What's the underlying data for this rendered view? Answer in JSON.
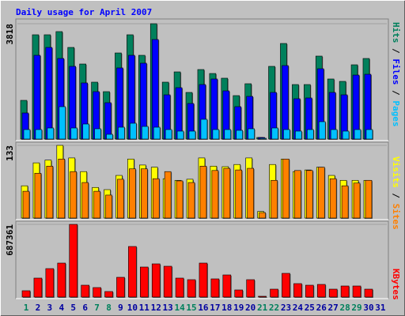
{
  "chart_data": [
    {
      "type": "bar",
      "title": "Daily usage for April 2007",
      "ylim": [
        0,
        3818
      ],
      "yticks": [
        3818
      ],
      "series": [
        {
          "name": "Hits",
          "color": "#00805c",
          "values": [
            1281,
            3452,
            3452,
            3557,
            3033,
            2484,
            1883,
            1569,
            2850,
            3452,
            2772,
            3818,
            1883,
            2223,
            1543,
            2301,
            2170,
            2014,
            1438,
            1831,
            52,
            2406,
            3164,
            1804,
            1804,
            2746,
            1988,
            1909,
            2458,
            2667,
            null
          ]
        },
        {
          "name": "Files",
          "color": "#0000ff",
          "values": [
            863,
            2772,
            3033,
            2667,
            2406,
            1857,
            1569,
            1203,
            2354,
            2772,
            2511,
            3295,
            1464,
            1700,
            1177,
            1804,
            1988,
            1595,
            1072,
            1412,
            52,
            1543,
            2432,
            1334,
            1360,
            2327,
            1543,
            1464,
            2118,
            2144,
            null
          ]
        },
        {
          "name": "Pages",
          "color": "#00c0ff",
          "values": [
            314,
            314,
            366,
            1072,
            366,
            497,
            340,
            157,
            392,
            523,
            418,
            392,
            314,
            262,
            262,
            654,
            314,
            314,
            288,
            340,
            26,
            366,
            314,
            262,
            314,
            575,
            314,
            262,
            314,
            314,
            null
          ]
        }
      ]
    },
    {
      "type": "bar",
      "ylim": [
        0,
        133
      ],
      "yticks": [
        133
      ],
      "series": [
        {
          "name": "Visits",
          "color": "#ffff00",
          "values": [
            59,
            101,
            106,
            133,
            110,
            85,
            56,
            52,
            78,
            108,
            97,
            93,
            72,
            69,
            71,
            110,
            95,
            94,
            98,
            110,
            12,
            98,
            108,
            85,
            88,
            93,
            78,
            69,
            69,
            69,
            null
          ]
        },
        {
          "name": "Sites",
          "color": "#ff8000",
          "values": [
            49,
            82,
            95,
            108,
            85,
            65,
            49,
            42,
            71,
            90,
            90,
            72,
            85,
            68,
            65,
            95,
            87,
            91,
            88,
            91,
            10,
            69,
            108,
            87,
            87,
            93,
            72,
            59,
            64,
            69,
            null
          ]
        }
      ]
    },
    {
      "type": "bar",
      "ylim": [
        0,
        687361
      ],
      "yticks": [
        687361
      ],
      "categories": [
        "1",
        "2",
        "3",
        "4",
        "5",
        "6",
        "7",
        "8",
        "9",
        "10",
        "11",
        "12",
        "13",
        "14",
        "15",
        "16",
        "17",
        "18",
        "19",
        "20",
        "21",
        "22",
        "23",
        "24",
        "25",
        "26",
        "27",
        "28",
        "29",
        "30",
        "31"
      ],
      "category_colors": [
        "#00805c",
        "#0000a0",
        "#0000a0",
        "#0000a0",
        "#0000a0",
        "#0000a0",
        "#00805c",
        "#00805c",
        "#0000a0",
        "#0000a0",
        "#0000a0",
        "#0000a0",
        "#0000a0",
        "#00805c",
        "#00805c",
        "#0000a0",
        "#0000a0",
        "#0000a0",
        "#0000a0",
        "#0000a0",
        "#00805c",
        "#00805c",
        "#0000a0",
        "#0000a0",
        "#0000a0",
        "#0000a0",
        "#0000a0",
        "#00805c",
        "#00805c",
        "#0000a0",
        "#0000a0"
      ],
      "series": [
        {
          "name": "KBytes",
          "color": "#ff0000",
          "values": [
            59771,
            179314,
            268971,
            321275,
            687361,
            112071,
            89657,
            52300,
            186788,
            478164,
            283914,
            313800,
            291386,
            179314,
            164371,
            321275,
            171842,
            209197,
            67243,
            164371,
            7471,
            74713,
            224140,
            127014,
            112071,
            119542,
            74713,
            104600,
            104600,
            74713,
            null
          ]
        }
      ]
    }
  ]
}
